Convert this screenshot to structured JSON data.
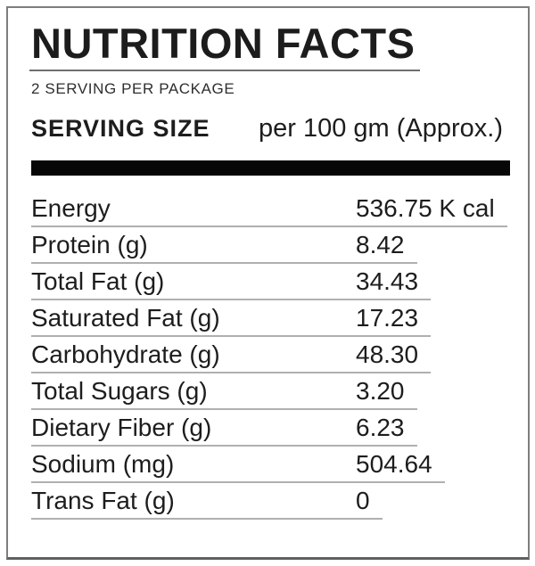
{
  "label": {
    "title": "NUTRITION FACTS",
    "servings_note": "2 SERVING PER PACKAGE",
    "serving_size": {
      "label": "SERVING SIZE",
      "value": "per 100 gm (Approx.)"
    },
    "rows": [
      {
        "label": "Energy",
        "value": "536.75 K cal"
      },
      {
        "label": "Protein (g)",
        "value": "8.42"
      },
      {
        "label": "Total Fat (g)",
        "value": "34.43"
      },
      {
        "label": "Saturated Fat (g)",
        "value": "17.23"
      },
      {
        "label": "Carbohydrate (g)",
        "value": "48.30"
      },
      {
        "label": "Total Sugars (g)",
        "value": "3.20"
      },
      {
        "label": "Dietary Fiber (g)",
        "value": "6.23"
      },
      {
        "label": "Sodium (mg)",
        "value": "504.64"
      },
      {
        "label": "Trans Fat (g)",
        "value": "0"
      }
    ],
    "colors": {
      "text": "#1d1d1d",
      "thick_bar": "#070707",
      "row_rule": "#b0b0b0",
      "title_rule": "#6f6f6f",
      "outer_border": "#7e7e7e"
    }
  }
}
